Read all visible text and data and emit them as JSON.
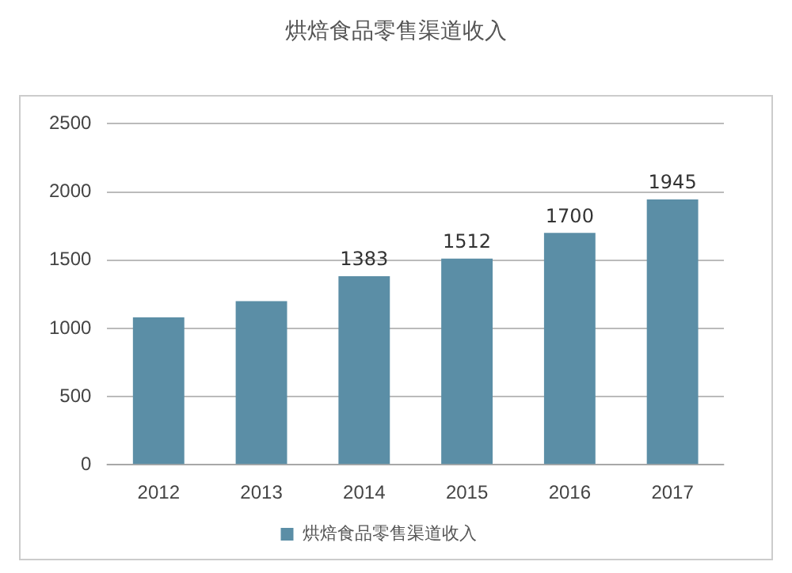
{
  "chart_data": {
    "type": "bar",
    "title": "烘焙食品零售渠道收入",
    "categories": [
      "2012",
      "2013",
      "2014",
      "2015",
      "2016",
      "2017"
    ],
    "series": [
      {
        "name": "烘焙食品零售渠道收入",
        "color": "#5b8ea6",
        "values": [
          1080,
          1200,
          1383,
          1512,
          1700,
          1945
        ],
        "value_labels": [
          null,
          null,
          "1383",
          "1512",
          "1700",
          "1945"
        ]
      }
    ],
    "ylim": [
      0,
      2500
    ],
    "yticks": [
      0,
      500,
      1000,
      1500,
      2000,
      2500
    ],
    "grid": "y",
    "legend": "bottom"
  }
}
